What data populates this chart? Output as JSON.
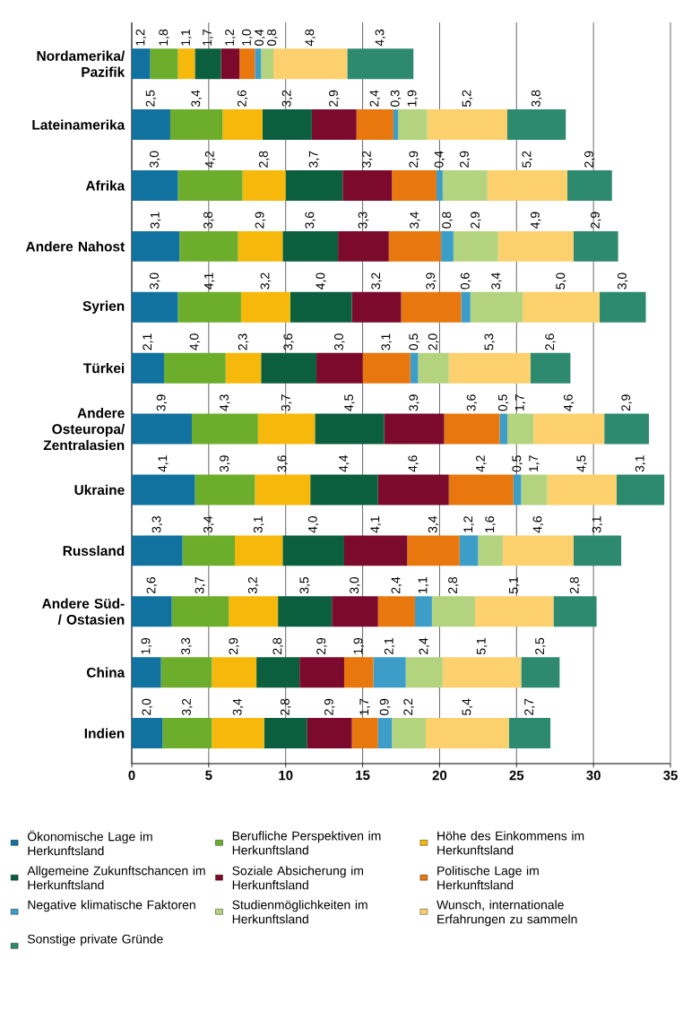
{
  "chart_data": {
    "type": "bar",
    "orientation": "horizontal",
    "stacked": true,
    "categories": [
      "Nordamerika/ Pazifik",
      "Lateinamerika",
      "Afrika",
      "Andere Nahost",
      "Syrien",
      "Türkei",
      "Andere Osteuropa/ Zentralasien",
      "Ukraine",
      "Russland",
      "Andere Süd-/ Ostasien",
      "China",
      "Indien"
    ],
    "series": [
      {
        "name": "Ökonomische Lage im Herkunftsland",
        "color": "#11729f",
        "values": [
          1.2,
          2.5,
          3.0,
          3.1,
          3.0,
          2.1,
          3.9,
          4.1,
          3.3,
          2.6,
          1.9,
          2.0
        ],
        "value_labels": [
          "1,2",
          "2,5",
          "3,0",
          "3,1",
          "3,0",
          "2,1",
          "3,9",
          "4,1",
          "3,3",
          "2,6",
          "1,9",
          "2,0"
        ]
      },
      {
        "name": "Berufliche Perspektiven im Herkunftsland",
        "color": "#6cae2c",
        "values": [
          1.8,
          3.4,
          4.2,
          3.8,
          4.1,
          4.0,
          4.3,
          3.9,
          3.4,
          3.7,
          3.3,
          3.2
        ],
        "value_labels": [
          "1,8",
          "3,4",
          "4,2",
          "3,8",
          "4,1",
          "4,0",
          "4,3",
          "3,9",
          "3,4",
          "3,7",
          "3,3",
          "3,2"
        ]
      },
      {
        "name": "Höhe des Einkommens im Herkunftsland",
        "color": "#f6b80a",
        "values": [
          1.1,
          2.6,
          2.8,
          2.9,
          3.2,
          2.3,
          3.7,
          3.6,
          3.1,
          3.2,
          2.9,
          3.4
        ],
        "value_labels": [
          "1,1",
          "2,6",
          "2,8",
          "2,9",
          "3,2",
          "2,3",
          "3,7",
          "3,6",
          "3,1",
          "3,2",
          "2,9",
          "3,4"
        ]
      },
      {
        "name": "Allgemeine Zukunftschancen im Herkunftsland",
        "color": "#0b5e3e",
        "values": [
          1.7,
          3.2,
          3.7,
          3.6,
          4.0,
          3.6,
          4.5,
          4.4,
          4.0,
          3.5,
          2.8,
          2.8
        ],
        "value_labels": [
          "1,7",
          "3,2",
          "3,7",
          "3,6",
          "4,0",
          "3,6",
          "4,5",
          "4,4",
          "4,0",
          "3,5",
          "2,8",
          "2,8"
        ]
      },
      {
        "name": "Soziale Absicherung im Herkunftsland",
        "color": "#7b0a2c",
        "values": [
          1.2,
          2.9,
          3.2,
          3.3,
          3.2,
          3.0,
          3.9,
          4.6,
          4.1,
          3.0,
          2.9,
          2.9
        ],
        "value_labels": [
          "1,2",
          "2,9",
          "3,2",
          "3,3",
          "3,2",
          "3,0",
          "3,9",
          "4,6",
          "4,1",
          "3,0",
          "2,9",
          "2,9"
        ]
      },
      {
        "name": "Politische Lage im Herkunftsland",
        "color": "#e8770e",
        "values": [
          1.0,
          2.4,
          2.9,
          3.4,
          3.9,
          3.1,
          3.6,
          4.2,
          3.4,
          2.4,
          1.9,
          1.7
        ],
        "value_labels": [
          "1,0",
          "2,4",
          "2,9",
          "3,4",
          "3,9",
          "3,1",
          "3,6",
          "4,2",
          "3,4",
          "2,4",
          "1,9",
          "1,7"
        ]
      },
      {
        "name": "Negative klimatische Faktoren",
        "color": "#3b9dc8",
        "values": [
          0.4,
          0.3,
          0.4,
          0.8,
          0.6,
          0.5,
          0.5,
          0.5,
          1.2,
          1.1,
          2.1,
          0.9
        ],
        "value_labels": [
          "0,4",
          "0,3",
          "0,4",
          "0,8",
          "0,6",
          "0,5",
          "0,5",
          "0,5",
          "1,2",
          "1,1",
          "2,1",
          "0,9"
        ]
      },
      {
        "name": "Studienmöglichkeiten im Herkunftsland",
        "color": "#b4d37f",
        "values": [
          0.8,
          1.9,
          2.9,
          2.9,
          3.4,
          2.0,
          1.7,
          1.7,
          1.6,
          2.8,
          2.4,
          2.2
        ],
        "value_labels": [
          "0,8",
          "1,9",
          "2,9",
          "2,9",
          "3,4",
          "2,0",
          "1,7",
          "1,7",
          "1,6",
          "2,8",
          "2,4",
          "2,2"
        ]
      },
      {
        "name": "Wunsch, internationale Erfahrungen zu sammeln",
        "color": "#fcd06c",
        "values": [
          4.8,
          5.2,
          5.2,
          4.9,
          5.0,
          5.3,
          4.6,
          4.5,
          4.6,
          5.1,
          5.1,
          5.4
        ],
        "value_labels": [
          "4,8",
          "5,2",
          "5,2",
          "4,9",
          "5,0",
          "5,3",
          "4,6",
          "4,5",
          "4,6",
          "5,1",
          "5,1",
          "5,4"
        ]
      },
      {
        "name": "Sonstige private Gründe",
        "color": "#2e8a6f",
        "values": [
          4.3,
          3.8,
          2.9,
          2.9,
          3.0,
          2.6,
          2.9,
          3.1,
          3.1,
          2.8,
          2.5,
          2.7
        ],
        "value_labels": [
          "4,3",
          "3,8",
          "2,9",
          "2,9",
          "3,0",
          "2,6",
          "2,9",
          "3,1",
          "3,1",
          "2,8",
          "2,5",
          "2,7"
        ]
      }
    ],
    "xlim": [
      0,
      35
    ],
    "xticks": [
      0,
      5,
      10,
      15,
      20,
      25,
      30,
      35
    ],
    "grid": "x",
    "legend": "bottom"
  }
}
